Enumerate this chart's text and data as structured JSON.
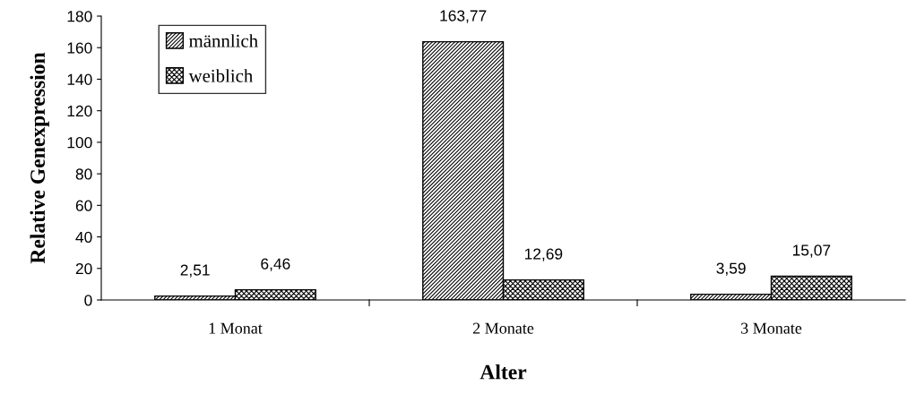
{
  "chart_data": {
    "type": "bar",
    "xlabel": "Alter",
    "ylabel": "Relative Genexpression",
    "categories": [
      "1 Monat",
      "2 Monate",
      "3 Monate"
    ],
    "series": [
      {
        "name": "männlich",
        "color": "#000000",
        "values": [
          2.51,
          163.77,
          3.59
        ],
        "value_labels": [
          "2,51",
          "163,77",
          "3,59"
        ]
      },
      {
        "name": "weiblich",
        "color": "#000000",
        "values": [
          6.46,
          12.69,
          15.07
        ],
        "value_labels": [
          "6,46",
          "12,69",
          "15,07"
        ]
      }
    ],
    "ylim": [
      0,
      180
    ],
    "yticks": [
      0,
      20,
      40,
      60,
      80,
      100,
      120,
      140,
      160,
      180
    ],
    "grid": false,
    "legend": "top left"
  }
}
